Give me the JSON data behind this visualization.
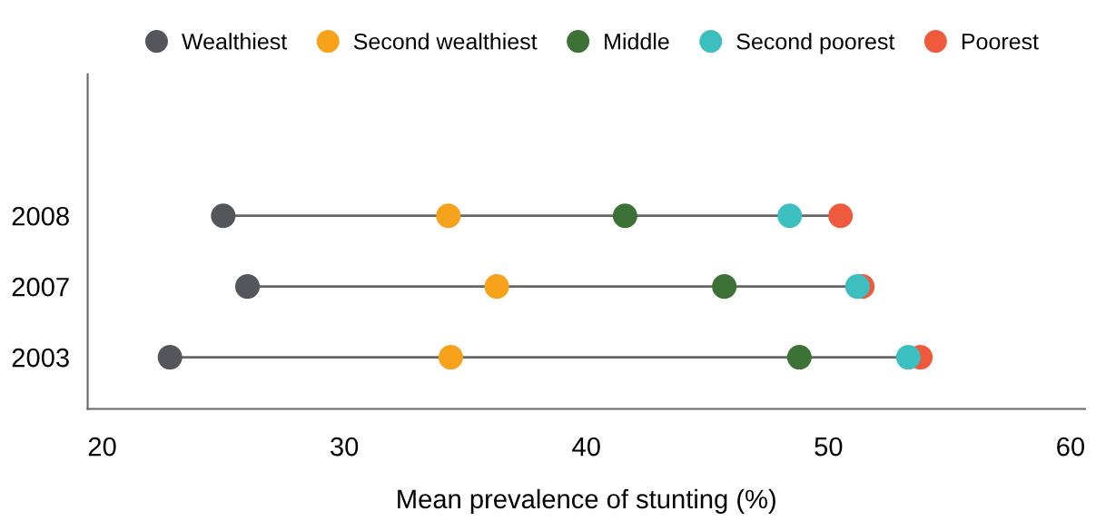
{
  "chart_data": {
    "type": "scatter",
    "orientation": "horizontal",
    "xlabel": "Mean prevalence of stunting (%)",
    "categories": [
      "2008",
      "2007",
      "2003"
    ],
    "series": [
      {
        "name": "Wealthiest",
        "color": "#55565b",
        "values": [
          25.0,
          26.0,
          22.8
        ]
      },
      {
        "name": "Second wealthiest",
        "color": "#f7a21b",
        "values": [
          34.3,
          36.3,
          34.4
        ]
      },
      {
        "name": "Middle",
        "color": "#3d7236",
        "values": [
          41.6,
          45.7,
          48.8
        ]
      },
      {
        "name": "Second poorest",
        "color": "#3dbfbf",
        "values": [
          48.4,
          51.2,
          53.3
        ]
      },
      {
        "name": "Poorest",
        "color": "#f05a3c",
        "values": [
          50.5,
          51.4,
          53.8
        ]
      }
    ],
    "xlim": [
      19.4,
      60.6
    ],
    "xticks": [
      20,
      30,
      40,
      50,
      60
    ],
    "grid": false,
    "legend": "top",
    "marker": "circle"
  }
}
